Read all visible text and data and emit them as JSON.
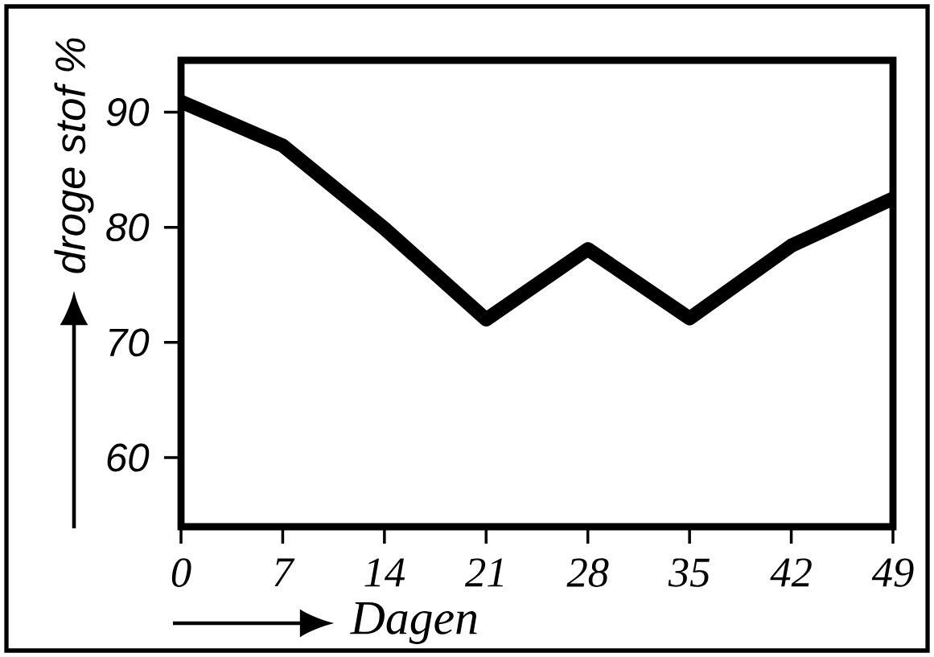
{
  "chart_data": {
    "type": "line",
    "xlabel": "Dagen",
    "ylabel": "droge stof %",
    "x": [
      0,
      7,
      14,
      21,
      28,
      35,
      42,
      49
    ],
    "series": [
      {
        "color": "#000000",
        "values": [
          90.9,
          87.1,
          79.9,
          72.0,
          78.1,
          72.1,
          78.4,
          82.5
        ]
      }
    ],
    "xlim": [
      0,
      49
    ],
    "ylim": [
      54,
      94.5
    ],
    "xticks": [
      0,
      7,
      14,
      21,
      28,
      35,
      42,
      49
    ],
    "yticks": [
      60,
      70,
      80,
      90
    ],
    "grid": false,
    "marker": "none",
    "line_style": "solid"
  }
}
